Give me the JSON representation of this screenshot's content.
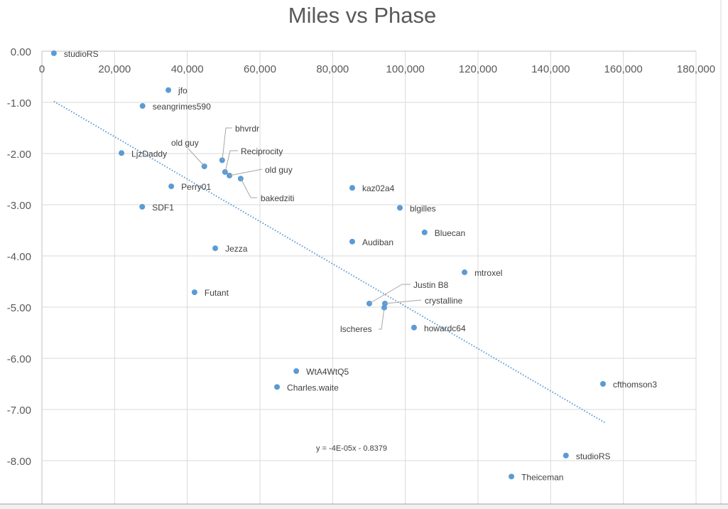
{
  "chart_data": {
    "type": "scatter",
    "title": "Miles vs Phase",
    "xlabel": "",
    "ylabel": "",
    "xlim": [
      0,
      180000
    ],
    "ylim": [
      -9,
      0
    ],
    "grid": true,
    "x_ticks": [
      0,
      20000,
      40000,
      60000,
      80000,
      100000,
      120000,
      140000,
      160000,
      180000
    ],
    "x_tick_labels": [
      "0",
      "20,000",
      "40,000",
      "60,000",
      "80,000",
      "100,000",
      "120,000",
      "140,000",
      "160,000",
      "180,000"
    ],
    "y_ticks": [
      0,
      -1,
      -2,
      -3,
      -4,
      -5,
      -6,
      -7,
      -8
    ],
    "y_tick_labels": [
      "0.00",
      "-1.00",
      "-2.00",
      "-3.00",
      "-4.00",
      "-5.00",
      "-6.00",
      "-7.00",
      "-8.00"
    ],
    "point_color": "#5B9BD5",
    "points": [
      {
        "label": "studioRS",
        "x": 3300,
        "y": -0.04
      },
      {
        "label": "jfo",
        "x": 34800,
        "y": -0.76
      },
      {
        "label": "seangrimes590",
        "x": 27700,
        "y": -1.07
      },
      {
        "label": "LjzDaddy",
        "x": 21900,
        "y": -1.99
      },
      {
        "label": "old guy",
        "x": 44700,
        "y": -2.25
      },
      {
        "label": "bhvrdr",
        "x": 49600,
        "y": -2.13
      },
      {
        "label": "Reciprocity",
        "x": 50400,
        "y": -2.36
      },
      {
        "label": "old guy",
        "x": 51600,
        "y": -2.43
      },
      {
        "label": "bakedziti",
        "x": 54700,
        "y": -2.49
      },
      {
        "label": "Perry01",
        "x": 35600,
        "y": -2.64
      },
      {
        "label": "SDF1",
        "x": 27600,
        "y": -3.04
      },
      {
        "label": "kaz02a4",
        "x": 85400,
        "y": -2.67
      },
      {
        "label": "blgilles",
        "x": 98500,
        "y": -3.06
      },
      {
        "label": "Bluecan",
        "x": 105300,
        "y": -3.54
      },
      {
        "label": "Audiban",
        "x": 85400,
        "y": -3.72
      },
      {
        "label": "Jezza",
        "x": 47700,
        "y": -3.85
      },
      {
        "label": "mtroxel",
        "x": 116300,
        "y": -4.32
      },
      {
        "label": "Futant",
        "x": 42000,
        "y": -4.71
      },
      {
        "label": "Justin B8",
        "x": 90100,
        "y": -4.93
      },
      {
        "label": "crystalline",
        "x": 94400,
        "y": -4.93
      },
      {
        "label": "lscheres",
        "x": 94200,
        "y": -5.01
      },
      {
        "label": "howardc64",
        "x": 102400,
        "y": -5.4
      },
      {
        "label": "WtA4WtQ5",
        "x": 70000,
        "y": -6.25
      },
      {
        "label": "Charles.waite",
        "x": 64700,
        "y": -6.56
      },
      {
        "label": "cfthomson3",
        "x": 154400,
        "y": -6.5
      },
      {
        "label": "studioRS",
        "x": 144200,
        "y": -7.9
      },
      {
        "label": "Theiceman",
        "x": 129200,
        "y": -8.31
      }
    ],
    "trendline": {
      "type": "linear",
      "equation": "y = -4E-05x - 0.8379",
      "x_range": [
        3300,
        155000
      ],
      "y_range": [
        -0.98,
        -7.26
      ],
      "color": "#5B9BD5"
    }
  }
}
